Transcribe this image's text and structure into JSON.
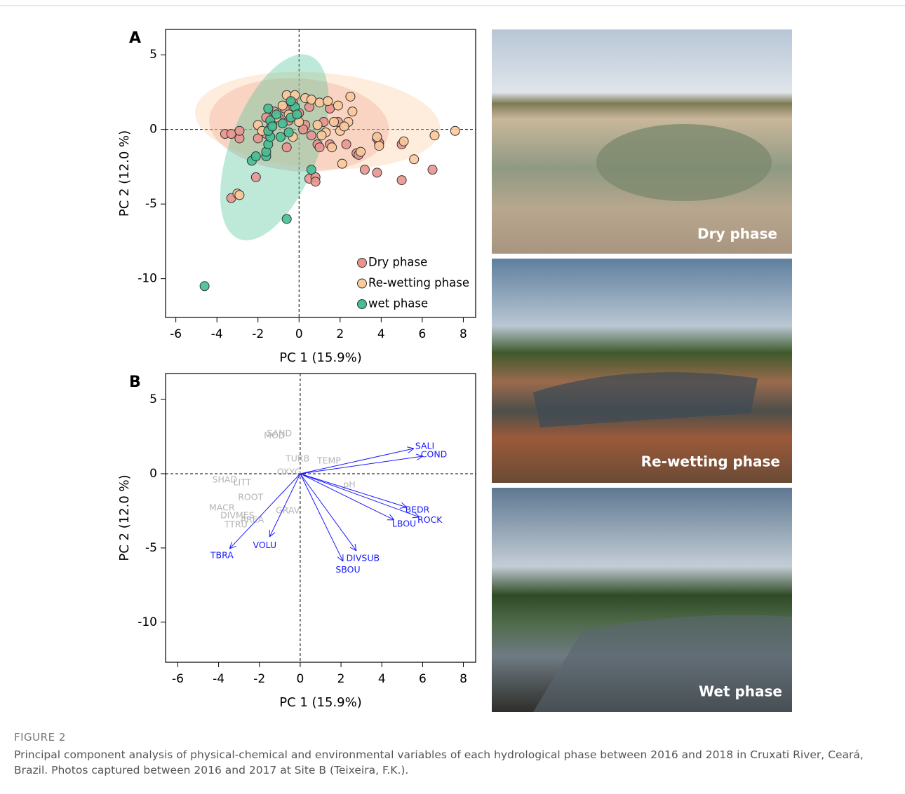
{
  "chart_data": [
    {
      "type": "scatter",
      "panel": "A",
      "xlabel": "PC 1 (15.9%)",
      "ylabel": "PC 2 (12.0 %)",
      "xlim": [
        -6.5,
        8.6
      ],
      "ylim": [
        -12.6,
        6.7
      ],
      "xticks": [
        -6,
        -4,
        -2,
        0,
        2,
        4,
        6,
        8
      ],
      "yticks": [
        5,
        0,
        -5,
        -10
      ],
      "hline": 0,
      "vline": 0,
      "legend": "lower right",
      "series": [
        {
          "name": "Dry phase",
          "color": "#e9958f",
          "x": [
            -3.6,
            -3.3,
            -2.9,
            -2.9,
            -3.3,
            -2.1,
            -2.0,
            -1.6,
            -1.3,
            -1.0,
            -0.6,
            -0.5,
            0.3,
            0.5,
            0.8,
            0.8,
            0.9,
            1.0,
            1.5,
            2.3,
            2.8,
            2.9,
            3.2,
            3.8,
            3.8,
            3.9,
            5.0,
            5.0,
            6.5,
            1.2,
            0.0,
            -0.3,
            0.5,
            1.9,
            -1.6,
            0.2,
            -1.2,
            0.6,
            1.5,
            -0.7
          ],
          "y": [
            -0.3,
            -0.3,
            -0.6,
            -0.1,
            -4.6,
            -3.2,
            -0.6,
            -0.3,
            0.3,
            0.8,
            -1.2,
            0.6,
            0.3,
            -3.3,
            -3.2,
            -3.5,
            -1.0,
            -1.2,
            -1.0,
            -1.0,
            -1.6,
            -1.7,
            -2.7,
            -2.9,
            -0.6,
            -0.9,
            -3.4,
            -1.0,
            -2.7,
            0.5,
            1.1,
            1.8,
            1.5,
            0.5,
            0.8,
            0.0,
            1.2,
            -0.4,
            1.4,
            1.4
          ],
          "ellipse": {
            "cx": 0.0,
            "cy": 0.3,
            "rx": 4.4,
            "ry": 3.1,
            "angle": -8
          }
        },
        {
          "name": "Re-wetting phase",
          "color": "#fcc99b",
          "x": [
            -3.0,
            -2.9,
            -2.0,
            -1.8,
            -1.1,
            -0.8,
            -0.6,
            -0.2,
            0.3,
            0.6,
            1.0,
            1.4,
            1.9,
            2.5,
            2.6,
            2.4,
            2.0,
            2.1,
            1.3,
            3.0,
            3.9,
            3.8,
            5.1,
            5.6,
            6.6,
            7.6,
            1.7,
            0.9,
            -0.3,
            1.1,
            -1.4,
            0.0,
            2.2,
            1.6,
            -0.5
          ],
          "y": [
            -4.3,
            -4.4,
            0.3,
            -0.1,
            0.8,
            1.6,
            2.3,
            2.3,
            2.1,
            2.0,
            1.8,
            1.9,
            1.6,
            2.2,
            1.2,
            0.5,
            -0.1,
            -2.3,
            -0.2,
            -1.5,
            -1.1,
            -0.5,
            -0.8,
            -2.0,
            -0.4,
            -0.1,
            0.5,
            0.3,
            -0.5,
            -0.4,
            0.1,
            0.5,
            0.2,
            -1.2,
            1.0
          ],
          "ellipse": {
            "cx": 0.9,
            "cy": 0.6,
            "rx": 6.0,
            "ry": 3.2,
            "angle": -7
          }
        },
        {
          "name": "wet phase",
          "color": "#44bf93",
          "x": [
            -4.6,
            -0.6,
            0.6,
            -2.3,
            -2.1,
            -1.6,
            -1.6,
            -1.5,
            -1.4,
            -1.5,
            -1.4,
            -1.5,
            -1.1,
            -0.8,
            -0.5,
            -0.4,
            -0.2,
            -0.9,
            -1.3,
            -0.1,
            -0.4
          ],
          "y": [
            -10.5,
            -6.0,
            -2.7,
            -2.1,
            -1.8,
            -1.8,
            -1.5,
            -1.0,
            -0.5,
            -0.1,
            0.6,
            1.4,
            1.0,
            0.4,
            -0.2,
            0.8,
            1.5,
            -0.5,
            0.2,
            1.0,
            1.9
          ],
          "ellipse": {
            "cx": -1.2,
            "cy": -1.2,
            "rx": 2.2,
            "ry": 6.4,
            "angle": -14
          }
        }
      ]
    },
    {
      "type": "biplot",
      "panel": "B",
      "xlabel": "PC 1 (15.9%)",
      "ylabel": "PC 2 (12.0 %)",
      "xlim": [
        -6.6,
        8.6
      ],
      "ylim": [
        -12.7,
        6.75
      ],
      "xticks": [
        -6,
        -4,
        -2,
        0,
        2,
        4,
        6,
        8
      ],
      "yticks": [
        5,
        0,
        -5,
        -10
      ],
      "hline": 0,
      "vline": 0,
      "arrows": {
        "color": "#1a1aff",
        "names": [
          "SALI",
          "COND",
          "BEDR",
          "ROCK",
          "LBOU",
          "DIVSUB",
          "SBOU",
          "VOLU",
          "TBRA"
        ],
        "x": [
          5.57,
          6.01,
          5.22,
          5.84,
          4.6,
          2.75,
          2.1,
          -1.5,
          -3.46
        ],
        "y": [
          1.7,
          1.18,
          -2.26,
          -2.92,
          -3.11,
          -5.19,
          -5.9,
          -4.25,
          -5.05
        ]
      },
      "labels": {
        "color": "#b4b4b4",
        "names": [
          "SAND",
          "MOD",
          "TURB",
          "TEMP",
          "OXYG",
          "SHAD",
          "LITT",
          "pH",
          "ROOT",
          "MACR",
          "GRAV",
          "DIVMES",
          "AREA",
          "TTRU"
        ],
        "x": [
          -1.02,
          -1.26,
          -0.13,
          1.41,
          -0.54,
          -3.7,
          -2.84,
          2.41,
          -2.43,
          -3.84,
          -0.61,
          -3.08,
          -2.36,
          -3.15
        ],
        "y": [
          2.69,
          2.55,
          1.0,
          0.85,
          0.1,
          -0.42,
          -0.61,
          -0.75,
          -1.6,
          -2.31,
          -2.5,
          -2.83,
          -3.11,
          -3.44
        ]
      }
    }
  ],
  "photos": [
    {
      "label": "Dry phase"
    },
    {
      "label": "Re-wetting phase"
    },
    {
      "label": "Wet phase"
    }
  ],
  "caption": {
    "label": "FIGURE 2",
    "text": "Principal component analysis of physical-chemical and environmental variables of each hydrological phase between 2016 and 2018 in Cruxati River, Ceará, Brazil. Photos captured between 2016 and 2017 at Site B (Teixeira, F.K.)."
  }
}
